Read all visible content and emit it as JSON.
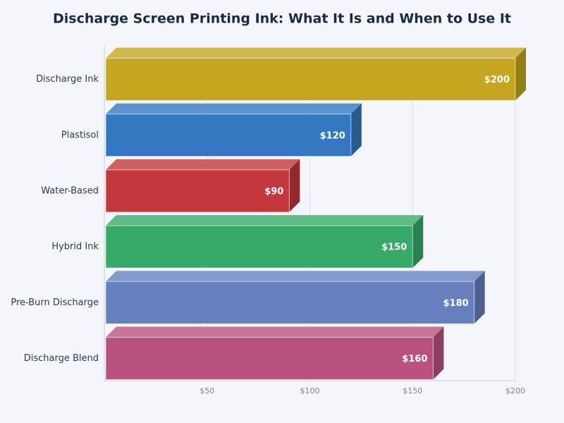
{
  "chart_data": {
    "type": "bar3d-horizontal",
    "title": "Discharge Screen Printing Ink: What It Is and When to Use It",
    "categories": [
      "Discharge Ink",
      "Plastisol",
      "Water-Based",
      "Hybrid Ink",
      "Pre-Burn Discharge",
      "Discharge Blend"
    ],
    "values": [
      200,
      120,
      90,
      150,
      180,
      160
    ],
    "value_labels": [
      "$200",
      "$120",
      "$90",
      "$150",
      "$180",
      "$160"
    ],
    "colors": [
      "#c4a61f",
      "#3478c1",
      "#c4373c",
      "#37aa68",
      "#6680bf",
      "#b9527e"
    ],
    "xlim": [
      0,
      200
    ],
    "xticks": [
      {
        "value": 50,
        "label": "$50"
      },
      {
        "value": 100,
        "label": "$100"
      },
      {
        "value": 150,
        "label": "$150"
      },
      {
        "value": 200,
        "label": "$200"
      }
    ],
    "grid": true
  }
}
